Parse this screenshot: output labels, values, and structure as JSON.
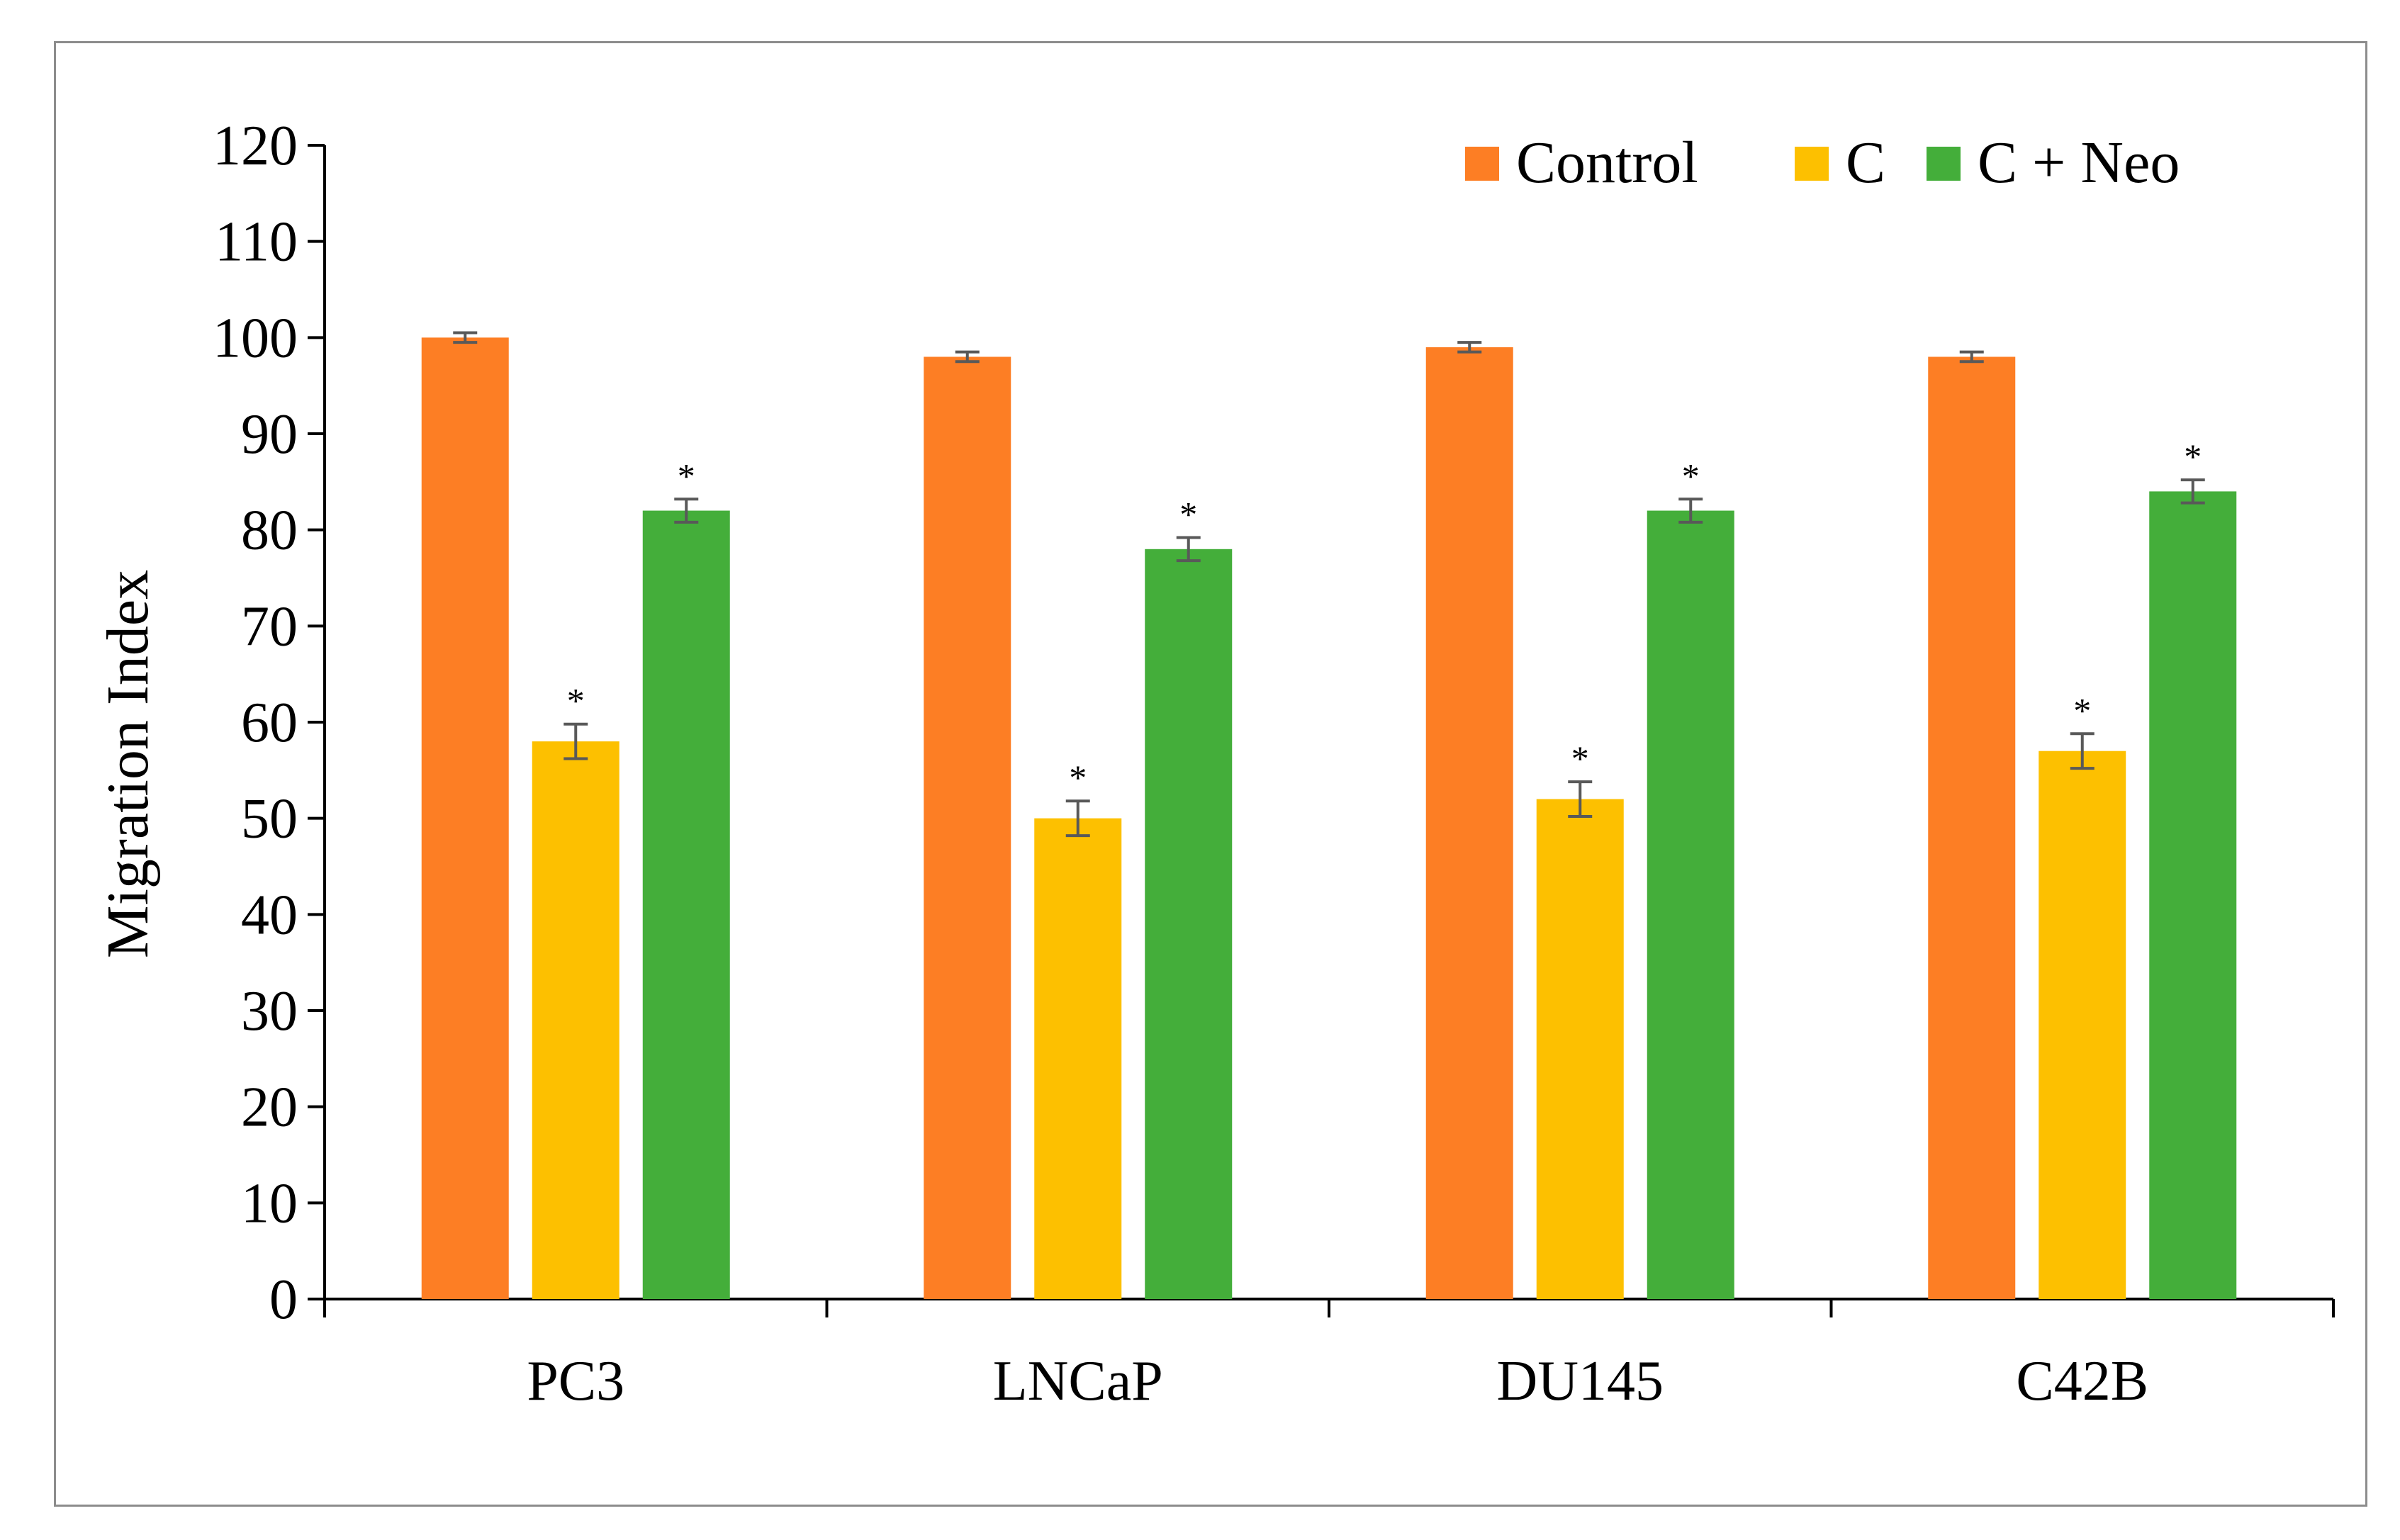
{
  "chart_data": {
    "type": "bar",
    "title": "",
    "xlabel": "",
    "ylabel": "Migration Index",
    "ylim": [
      0,
      120
    ],
    "ytick_step": 10,
    "yticks": [
      "0",
      "10",
      "20",
      "30",
      "40",
      "50",
      "60",
      "70",
      "80",
      "90",
      "100",
      "110",
      "120"
    ],
    "grid": false,
    "legend_position": "top-right",
    "categories": [
      "PC3",
      "LNCaP",
      "DU145",
      "C42B"
    ],
    "series": [
      {
        "name": "Control",
        "color": "#fd7e24",
        "values": [
          100,
          98,
          99,
          98
        ],
        "errors": [
          0.5,
          0.5,
          0.5,
          0.5
        ],
        "significance": [
          "",
          "",
          "",
          ""
        ]
      },
      {
        "name": "C",
        "color": "#fdc000",
        "values": [
          58,
          50,
          52,
          57
        ],
        "errors": [
          1.8,
          1.8,
          1.8,
          1.8
        ],
        "significance": [
          "*",
          "*",
          "*",
          "*"
        ]
      },
      {
        "name": "C + Neo",
        "color": "#44ae3a",
        "values": [
          82,
          78,
          82,
          84
        ],
        "errors": [
          1.2,
          1.2,
          1.2,
          1.2
        ],
        "significance": [
          "*",
          "*",
          "*",
          "*"
        ]
      }
    ],
    "error_bar_color": "#595959",
    "axis_color": "#000000"
  }
}
